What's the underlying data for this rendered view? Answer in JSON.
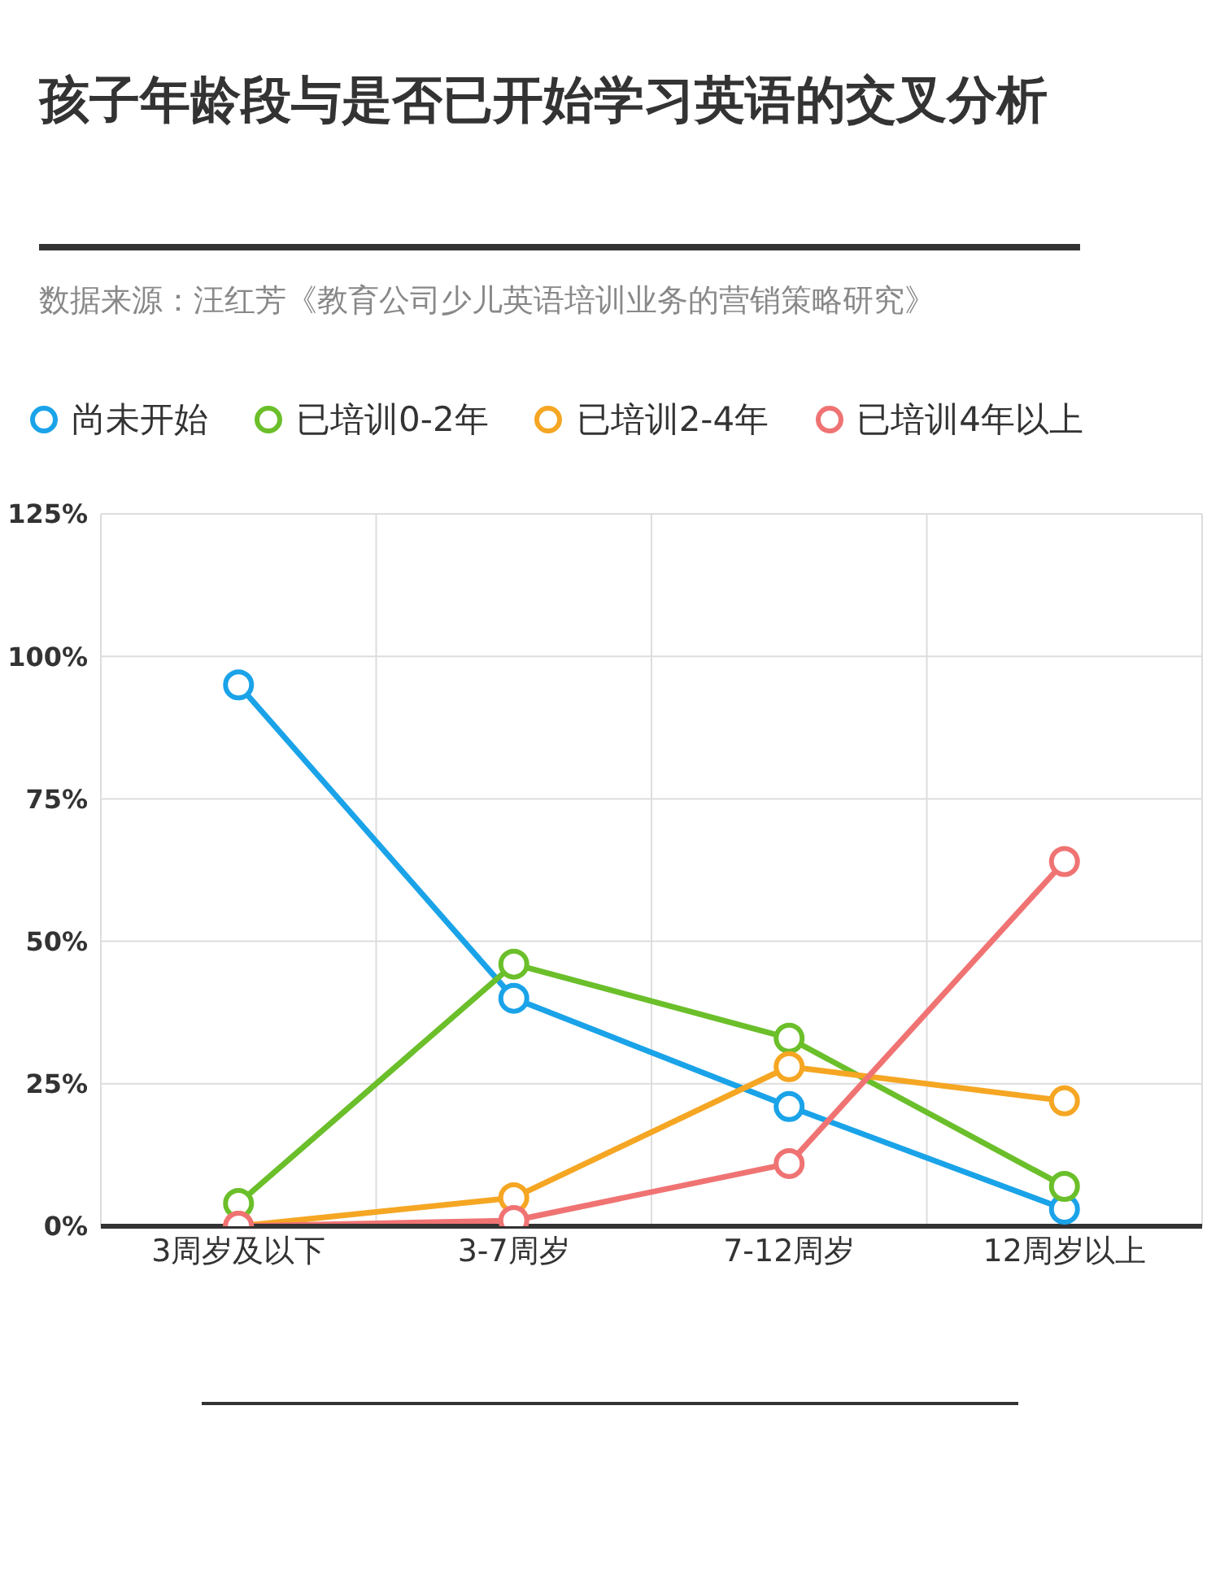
{
  "chart_data": {
    "type": "line",
    "title": "孩子年龄段与是否已开始学习英语的交叉分析",
    "annotations": [
      "数据来源：汪红芳《教育公司少儿英语培训业务的营销策略研究》"
    ],
    "categories": [
      "3周岁及以下",
      "3-7周岁",
      "7-12周岁",
      "12周岁以上"
    ],
    "series": [
      {
        "name": "尚未开始",
        "color": "#1aa3e8",
        "values": [
          95,
          40,
          21,
          3
        ]
      },
      {
        "name": "已培训0-2年",
        "color": "#6bbf2a",
        "values": [
          4,
          46,
          33,
          7
        ]
      },
      {
        "name": "已培训2-4年",
        "color": "#f5a623",
        "values": [
          0,
          5,
          28,
          22
        ]
      },
      {
        "name": "已培训4年以上",
        "color": "#f07373",
        "values": [
          0,
          1,
          11,
          64
        ]
      }
    ],
    "ylim": [
      0,
      125
    ],
    "yticks": [
      {
        "value": 0,
        "label": "0%"
      },
      {
        "value": 25,
        "label": "25%"
      },
      {
        "value": 50,
        "label": "50%"
      },
      {
        "value": 75,
        "label": "75%"
      },
      {
        "value": 100,
        "label": "100%"
      },
      {
        "value": 125,
        "label": "125%"
      }
    ],
    "grid": true,
    "legend": "top left",
    "marker": "circle",
    "line_style": "solid"
  }
}
